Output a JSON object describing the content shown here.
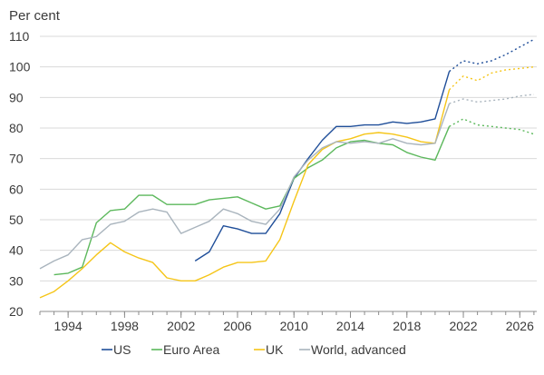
{
  "chart_data": {
    "type": "line",
    "ylabel": "Per cent",
    "xlim": [
      1992,
      2027.2
    ],
    "ylim": [
      20,
      110
    ],
    "xticks": [
      1994,
      1998,
      2002,
      2006,
      2010,
      2014,
      2018,
      2022,
      2026
    ],
    "xtick_labels": [
      "1994",
      "1998",
      "2002",
      "2006",
      "2010",
      "2014",
      "2018",
      "2022",
      "2026"
    ],
    "yticks": [
      20,
      30,
      40,
      50,
      60,
      70,
      80,
      90,
      100,
      110
    ],
    "ytick_labels": [
      "20",
      "30",
      "40",
      "50",
      "60",
      "70",
      "80",
      "90",
      "100",
      "110"
    ],
    "grid": "horizontal",
    "legend_position": "bottom",
    "series": [
      {
        "name": "US",
        "color": "#1f4e99",
        "x": [
          2003,
          2004,
          2005,
          2006,
          2007,
          2008,
          2009,
          2010,
          2011,
          2012,
          2013,
          2014,
          2015,
          2016,
          2017,
          2018,
          2019,
          2020,
          2021,
          2022,
          2023,
          2024,
          2025,
          2026,
          2027
        ],
        "values": [
          36.5,
          39.5,
          48,
          47,
          45.5,
          45.5,
          52,
          63.5,
          70,
          76,
          80.5,
          80.5,
          81,
          81,
          82,
          81.5,
          82,
          83,
          98.5,
          102,
          101,
          102,
          104,
          106.5,
          109
        ],
        "forecast_from": 2021
      },
      {
        "name": "Euro Area",
        "color": "#5cb85c",
        "x": [
          1993,
          1994,
          1995,
          1996,
          1997,
          1998,
          1999,
          2000,
          2001,
          2002,
          2003,
          2004,
          2005,
          2006,
          2007,
          2008,
          2009,
          2010,
          2011,
          2012,
          2013,
          2014,
          2015,
          2016,
          2017,
          2018,
          2019,
          2020,
          2021,
          2022,
          2023,
          2024,
          2025,
          2026,
          2027
        ],
        "values": [
          32,
          32.5,
          34.5,
          49,
          53,
          53.5,
          58,
          58,
          55,
          55,
          55,
          56.5,
          57,
          57.5,
          55.5,
          53.5,
          54.5,
          63.5,
          67,
          69.5,
          73.5,
          75.5,
          76,
          75,
          74.5,
          72,
          70.5,
          69.5,
          80.5,
          83,
          81,
          80.5,
          80,
          79.5,
          78
        ],
        "forecast_from": 2021
      },
      {
        "name": "UK",
        "color": "#f5c518",
        "x": [
          1992,
          1993,
          1994,
          1995,
          1996,
          1997,
          1998,
          1999,
          2000,
          2001,
          2002,
          2003,
          2004,
          2005,
          2006,
          2007,
          2008,
          2009,
          2010,
          2011,
          2012,
          2013,
          2014,
          2015,
          2016,
          2017,
          2018,
          2019,
          2020,
          2021,
          2022,
          2023,
          2024,
          2025,
          2026,
          2027
        ],
        "values": [
          24.5,
          26.5,
          30,
          34,
          38.5,
          42.5,
          39.5,
          37.5,
          36,
          31,
          30,
          30,
          32,
          34.5,
          36,
          36,
          36.5,
          43.5,
          56,
          68,
          73,
          75.5,
          76.5,
          78,
          78.5,
          78,
          77,
          75.5,
          75,
          92.5,
          97,
          95.5,
          98,
          99,
          99.5,
          100
        ],
        "forecast_from": 2021
      },
      {
        "name": "World, advanced",
        "color": "#a9b4bd",
        "x": [
          1992,
          1993,
          1994,
          1995,
          1996,
          1997,
          1998,
          1999,
          2000,
          2001,
          2002,
          2003,
          2004,
          2005,
          2006,
          2007,
          2008,
          2009,
          2010,
          2011,
          2012,
          2013,
          2014,
          2015,
          2016,
          2017,
          2018,
          2019,
          2020,
          2021,
          2022,
          2023,
          2024,
          2025,
          2026,
          2027
        ],
        "values": [
          34,
          36.5,
          38.5,
          43.5,
          44.5,
          48.5,
          49.5,
          52.5,
          53.5,
          52.5,
          45.5,
          47.5,
          49.5,
          53.5,
          52,
          49.5,
          48.5,
          53.5,
          64,
          69.5,
          73.5,
          75.5,
          75,
          75.5,
          75,
          76.5,
          75,
          74.5,
          75,
          88,
          89.5,
          88.5,
          89,
          89.5,
          90.5,
          91
        ],
        "forecast_from": 2021
      }
    ]
  }
}
